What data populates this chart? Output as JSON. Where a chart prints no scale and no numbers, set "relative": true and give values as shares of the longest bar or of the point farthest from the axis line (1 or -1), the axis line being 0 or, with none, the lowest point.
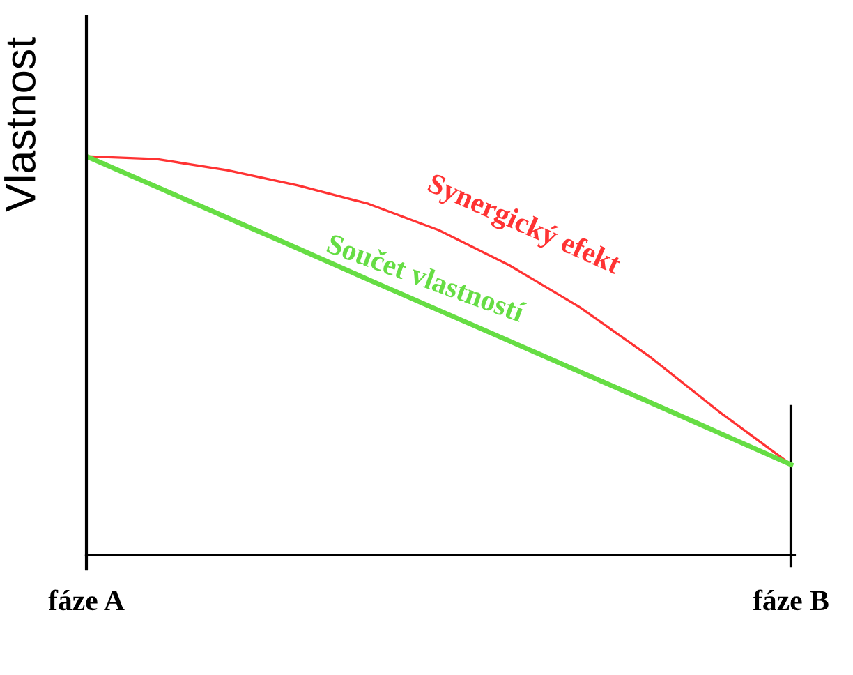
{
  "chart_data": {
    "type": "line",
    "relative": true,
    "ylabel": "Vlastnost",
    "categories": [
      "fáze A",
      null,
      null,
      null,
      null,
      null,
      null,
      null,
      null,
      null,
      "fáze B"
    ],
    "series": [
      {
        "name": "Synergický efekt",
        "color": "#ff3333",
        "values": [
          1,
          0.993,
          0.965,
          0.927,
          0.881,
          0.815,
          0.727,
          0.622,
          0.497,
          0.357,
          0.227
        ]
      },
      {
        "name": "Součet vlastností",
        "color": "#66dd44",
        "values": [
          1,
          0.923,
          0.846,
          0.769,
          0.691,
          0.614,
          0.537,
          0.46,
          0.383,
          0.305,
          0.227
        ]
      }
    ],
    "grid": false,
    "legend": false
  }
}
